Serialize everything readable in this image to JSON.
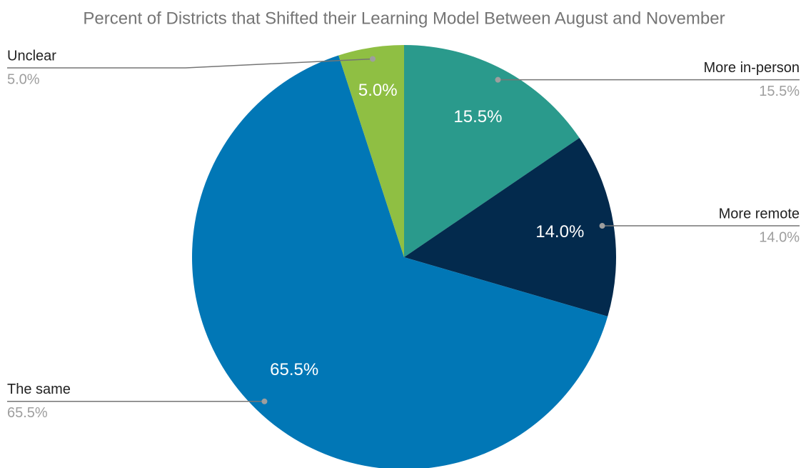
{
  "chart_data": {
    "type": "pie",
    "title": "Percent of Districts that Shifted their Learning Model Between August and November",
    "categories": [
      "More in-person",
      "More remote",
      "The same",
      "Unclear"
    ],
    "values": [
      15.5,
      14.0,
      65.5,
      5.0
    ],
    "value_labels": [
      "15.5%",
      "14.0%",
      "65.5%",
      "5.0%"
    ],
    "colors": [
      "#2a9a8c",
      "#032a4d",
      "#0177b6",
      "#8fbf43"
    ]
  }
}
